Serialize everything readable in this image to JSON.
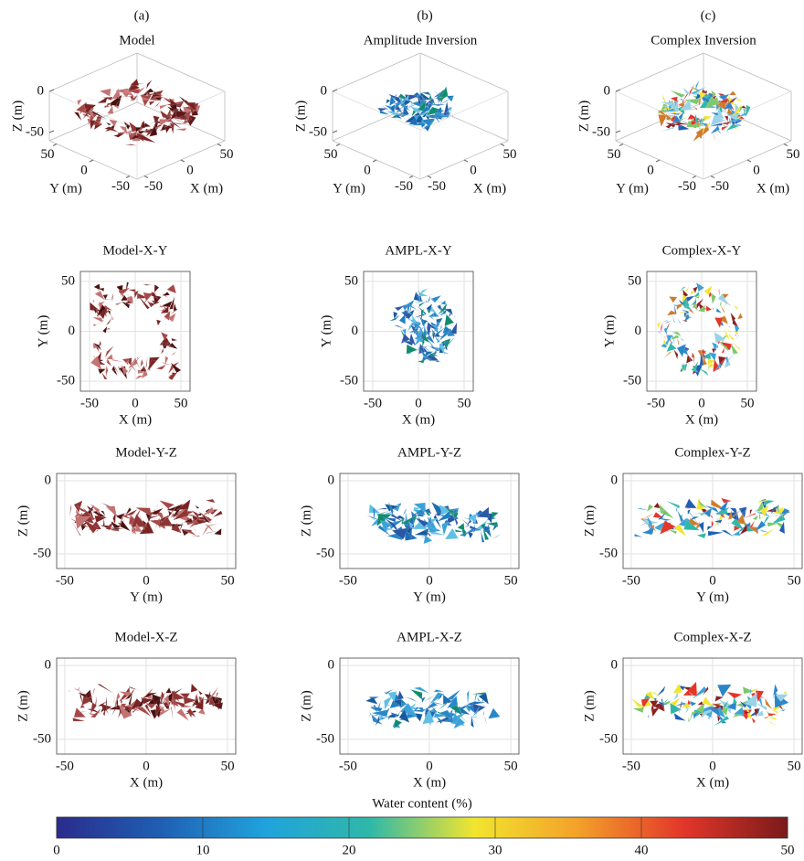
{
  "figure": {
    "column_labels": [
      "(a)",
      "(b)",
      "(c)"
    ],
    "panels": [
      {
        "title": "Model",
        "xlabel": "X (m)",
        "ylabel": "Y (m)",
        "zlabel": "Z (m)",
        "xlim": [
          -60,
          60
        ],
        "ylim": [
          -60,
          60
        ],
        "zlim": [
          -60,
          0
        ],
        "xticks": [
          -50,
          0,
          50
        ],
        "yticks": [
          50,
          0,
          -50
        ],
        "zticks": [
          0,
          -50
        ]
      },
      {
        "title": "Amplitude Inversion",
        "xlabel": "X (m)",
        "ylabel": "Y (m)",
        "zlabel": "Z (m)",
        "xlim": [
          -60,
          60
        ],
        "ylim": [
          -60,
          60
        ],
        "zlim": [
          -60,
          0
        ],
        "xticks": [
          -50,
          0,
          50
        ],
        "yticks": [
          50,
          0,
          -50
        ],
        "zticks": [
          0,
          -50
        ]
      },
      {
        "title": "Complex Inversion",
        "xlabel": "X (m)",
        "ylabel": "Y (m)",
        "zlabel": "Z (m)",
        "xlim": [
          -60,
          60
        ],
        "ylim": [
          -60,
          60
        ],
        "zlim": [
          -60,
          0
        ],
        "xticks": [
          -50,
          0,
          50
        ],
        "yticks": [
          50,
          0,
          -50
        ],
        "zticks": [
          0,
          -50
        ]
      },
      {
        "title": "Model-X-Y",
        "xlabel": "X (m)",
        "ylabel": "Y (m)",
        "xlim": [
          -60,
          60
        ],
        "ylim": [
          -60,
          60
        ],
        "xticks": [
          -50,
          0,
          50
        ],
        "yticks": [
          -50,
          0,
          50
        ]
      },
      {
        "title": "AMPL-X-Y",
        "xlabel": "X (m)",
        "ylabel": "Y (m)",
        "xlim": [
          -60,
          60
        ],
        "ylim": [
          -60,
          60
        ],
        "xticks": [
          -50,
          0,
          50
        ],
        "yticks": [
          -50,
          0,
          50
        ]
      },
      {
        "title": "Complex-X-Y",
        "xlabel": "X (m)",
        "ylabel": "Y (m)",
        "xlim": [
          -60,
          60
        ],
        "ylim": [
          -60,
          60
        ],
        "xticks": [
          -50,
          0,
          50
        ],
        "yticks": [
          -50,
          0,
          50
        ]
      },
      {
        "title": "Model-Y-Z",
        "xlabel": "Y (m)",
        "ylabel": "Z (m)",
        "xlim": [
          -55,
          55
        ],
        "ylim": [
          -60,
          5
        ],
        "xticks": [
          -50,
          0,
          50
        ],
        "yticks": [
          -50,
          0
        ]
      },
      {
        "title": "AMPL-Y-Z",
        "xlabel": "Y (m)",
        "ylabel": "Z (m)",
        "xlim": [
          -55,
          55
        ],
        "ylim": [
          -60,
          5
        ],
        "xticks": [
          -50,
          0,
          50
        ],
        "yticks": [
          -50,
          0
        ]
      },
      {
        "title": "Complex-Y-Z",
        "xlabel": "Y (m)",
        "ylabel": "Z (m)",
        "xlim": [
          -55,
          55
        ],
        "ylim": [
          -60,
          5
        ],
        "xticks": [
          -50,
          0,
          50
        ],
        "yticks": [
          -50,
          0
        ]
      },
      {
        "title": "Model-X-Z",
        "xlabel": "X (m)",
        "ylabel": "Z (m)",
        "xlim": [
          -55,
          55
        ],
        "ylim": [
          -60,
          5
        ],
        "xticks": [
          -50,
          0,
          50
        ],
        "yticks": [
          -50,
          0
        ]
      },
      {
        "title": "AMPL-X-Z",
        "xlabel": "X (m)",
        "ylabel": "Z (m)",
        "xlim": [
          -55,
          55
        ],
        "ylim": [
          -60,
          5
        ],
        "xticks": [
          -50,
          0,
          50
        ],
        "yticks": [
          -50,
          0
        ]
      },
      {
        "title": "Complex-X-Z",
        "xlabel": "X (m)",
        "ylabel": "Z (m)",
        "xlim": [
          -55,
          55
        ],
        "ylim": [
          -60,
          5
        ],
        "xticks": [
          -50,
          0,
          50
        ],
        "yticks": [
          -50,
          0
        ]
      }
    ],
    "colorbar": {
      "label": "Water content (%)",
      "lim": [
        0,
        50
      ],
      "ticks": [
        0,
        10,
        20,
        30,
        40,
        50
      ],
      "colors": [
        "#2a2c8c",
        "#1f5fb3",
        "#20a3dc",
        "#2fb8a8",
        "#f2e52e",
        "#f3a02a",
        "#e3362a",
        "#7a1a1a"
      ]
    }
  }
}
